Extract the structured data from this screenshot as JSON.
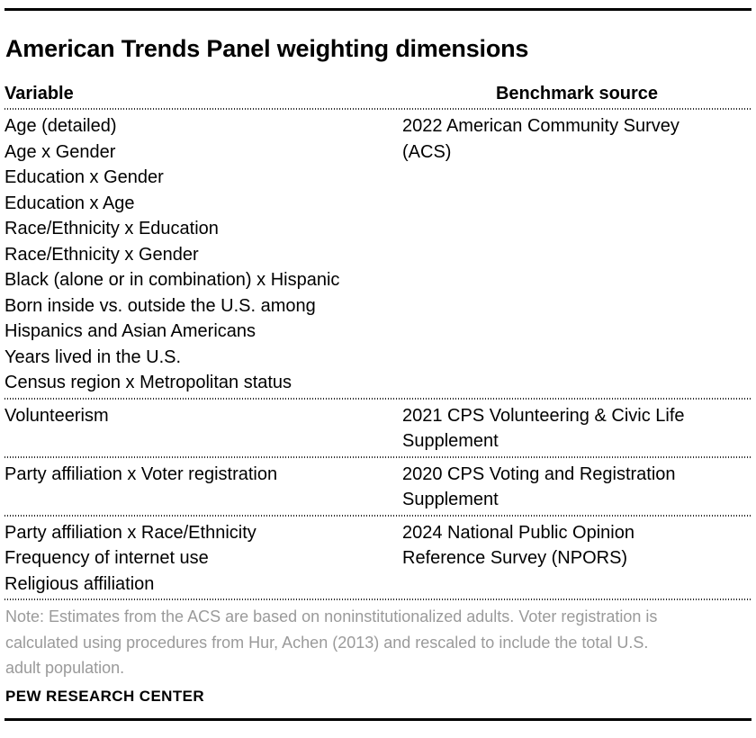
{
  "title": "American Trends Panel weighting dimensions",
  "table": {
    "columns": [
      "Variable",
      "Benchmark source"
    ],
    "sections": [
      {
        "variables": [
          "Age (detailed)",
          "Age x Gender",
          "Education x Gender",
          "Education x Age",
          "Race/Ethnicity x Education",
          "Race/Ethnicity x Gender",
          "Black (alone or in combination) x Hispanic",
          "Born inside vs. outside the U.S. among Hispanics and Asian Americans",
          "Years lived in the U.S.",
          "Census region x Metropolitan status"
        ],
        "source": "2022 American Community Survey (ACS)"
      },
      {
        "variables": [
          "Volunteerism"
        ],
        "source": "2021 CPS Volunteering & Civic Life Supplement"
      },
      {
        "variables": [
          "Party affiliation x Voter registration"
        ],
        "source": "2020 CPS Voting and Registration Supplement"
      },
      {
        "variables": [
          "Party affiliation x Race/Ethnicity",
          "Frequency of internet use",
          "Religious affiliation"
        ],
        "source": "2024 National Public Opinion Reference Survey (NPORS)"
      }
    ]
  },
  "note": "Note: Estimates from the ACS are based on noninstitutionalized adults. Voter registration is calculated using procedures from Hur, Achen (2013) and rescaled to include the total U.S. adult population.",
  "note_lines": [
    "Note: Estimates from the ACS are based on noninstitutionalized adults. Voter registration is",
    "calculated using procedures from Hur, Achen (2013) and rescaled to include the total U.S.",
    "adult population."
  ],
  "footer": "PEW RESEARCH CENTER",
  "colors": {
    "text": "#000000",
    "note_gray": "#9a9a9a",
    "rule": "#000000",
    "dotted": "#2a2a2a",
    "background": "#ffffff"
  },
  "chart_data": {
    "type": "table",
    "title": "American Trends Panel weighting dimensions",
    "columns": [
      "Variable",
      "Benchmark source"
    ],
    "rows": [
      [
        "Age (detailed)",
        "2022 American Community Survey (ACS)"
      ],
      [
        "Age x Gender",
        "2022 American Community Survey (ACS)"
      ],
      [
        "Education x Gender",
        "2022 American Community Survey (ACS)"
      ],
      [
        "Education x Age",
        "2022 American Community Survey (ACS)"
      ],
      [
        "Race/Ethnicity x Education",
        "2022 American Community Survey (ACS)"
      ],
      [
        "Race/Ethnicity x Gender",
        "2022 American Community Survey (ACS)"
      ],
      [
        "Black (alone or in combination) x Hispanic",
        "2022 American Community Survey (ACS)"
      ],
      [
        "Born inside vs. outside the U.S. among Hispanics and Asian Americans",
        "2022 American Community Survey (ACS)"
      ],
      [
        "Years lived in the U.S.",
        "2022 American Community Survey (ACS)"
      ],
      [
        "Census region x Metropolitan status",
        "2022 American Community Survey (ACS)"
      ],
      [
        "Volunteerism",
        "2021 CPS Volunteering & Civic Life Supplement"
      ],
      [
        "Party affiliation x Voter registration",
        "2020 CPS Voting and Registration Supplement"
      ],
      [
        "Party affiliation x Race/Ethnicity",
        "2024 National Public Opinion Reference Survey (NPORS)"
      ],
      [
        "Frequency of internet use",
        "2024 National Public Opinion Reference Survey (NPORS)"
      ],
      [
        "Religious affiliation",
        "2024 National Public Opinion Reference Survey (NPORS)"
      ]
    ],
    "layout": "grouped rows separated by dotted rules; note and source credit below"
  }
}
